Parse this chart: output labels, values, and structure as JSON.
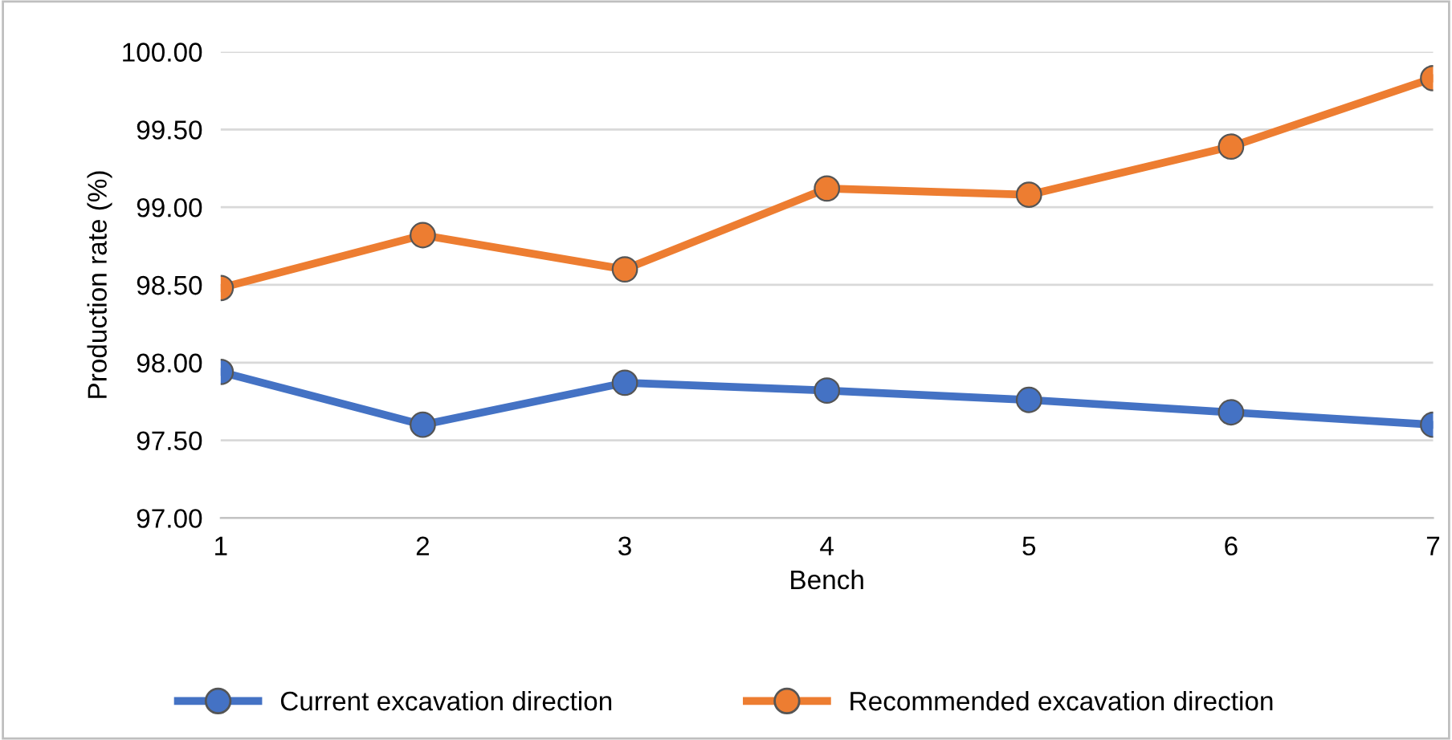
{
  "chart_data": {
    "type": "line",
    "xlabel": "Bench",
    "ylabel": "Production rate (%)",
    "x": [
      1,
      2,
      3,
      4,
      5,
      6,
      7
    ],
    "series": [
      {
        "name": "Current excavation direction",
        "color": "#4472c4",
        "values": [
          97.94,
          97.6,
          97.87,
          97.82,
          97.76,
          97.68,
          97.6
        ]
      },
      {
        "name": "Recommended excavation direction",
        "color": "#ed7d31",
        "values": [
          98.48,
          98.82,
          98.6,
          99.12,
          99.08,
          99.39,
          99.83
        ]
      }
    ],
    "xlim": [
      1,
      7
    ],
    "xticks": [
      1,
      2,
      3,
      4,
      5,
      6,
      7
    ],
    "ylim": [
      97.0,
      100.0
    ],
    "yticks": [
      {
        "value": 97.0,
        "label": "97.00"
      },
      {
        "value": 97.5,
        "label": "97.50"
      },
      {
        "value": 98.0,
        "label": "98.00"
      },
      {
        "value": 98.5,
        "label": "98.50"
      },
      {
        "value": 99.0,
        "label": "99.00"
      },
      {
        "value": 99.5,
        "label": "99.50"
      },
      {
        "value": 100.0,
        "label": "100.00"
      }
    ],
    "grid": "y",
    "legend": "bottom",
    "marker": "circle",
    "line_style": "solid"
  }
}
